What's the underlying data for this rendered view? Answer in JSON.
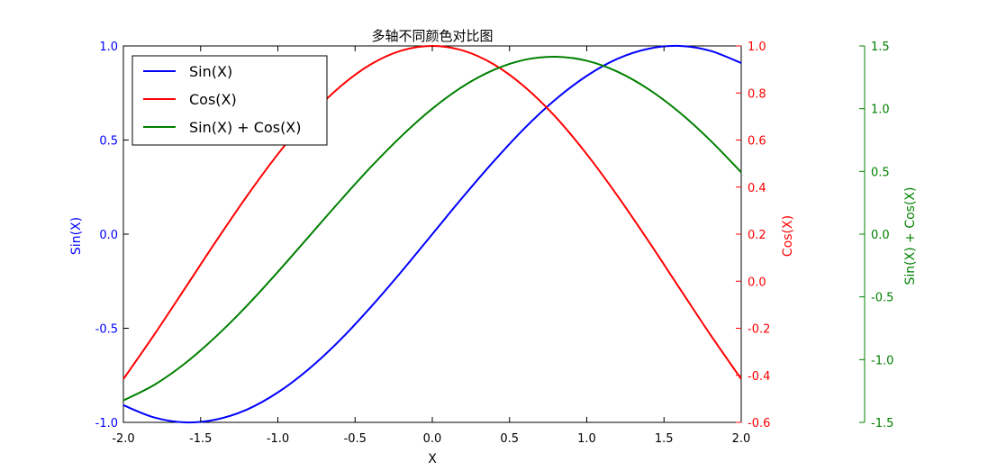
{
  "chart_data": {
    "type": "line",
    "title": "多轴不同颜色对比图",
    "xlabel": "X",
    "xlim": [
      -2.0,
      2.0
    ],
    "x_ticks": [
      "-2.0",
      "-1.5",
      "-1.0",
      "-0.5",
      "0.0",
      "0.5",
      "1.0",
      "1.5",
      "2.0"
    ],
    "axes": [
      {
        "id": "left",
        "label": "Sin(X)",
        "color": "#0000ff",
        "ylim": [
          -1.0,
          1.0
        ],
        "ticks": [
          "-1.0",
          "-0.5",
          "0.0",
          "0.5",
          "1.0"
        ]
      },
      {
        "id": "right1",
        "label": "Cos(X)",
        "color": "#ff0000",
        "ylim": [
          -0.6,
          1.0
        ],
        "ticks": [
          "-0.6",
          "-0.4",
          "-0.2",
          "0.0",
          "0.2",
          "0.4",
          "0.6",
          "0.8",
          "1.0"
        ]
      },
      {
        "id": "right2",
        "label": "Sin(X) + Cos(X)",
        "color": "#008000",
        "ylim": [
          -1.5,
          1.5
        ],
        "ticks": [
          "-1.5",
          "-1.0",
          "-0.5",
          "0.0",
          "0.5",
          "1.0",
          "1.5"
        ]
      }
    ],
    "x": [
      -2.0,
      -1.8,
      -1.6,
      -1.4,
      -1.2,
      -1.0,
      -0.8,
      -0.6,
      -0.4,
      -0.2,
      0.0,
      0.2,
      0.4,
      0.6,
      0.8,
      1.0,
      1.2,
      1.4,
      1.6,
      1.8,
      2.0
    ],
    "series": [
      {
        "name": "Sin(X)",
        "axis": "left",
        "color": "#0000ff",
        "values": [
          -0.909,
          -0.974,
          -1.0,
          -0.985,
          -0.932,
          -0.841,
          -0.717,
          -0.565,
          -0.389,
          -0.199,
          0.0,
          0.199,
          0.389,
          0.565,
          0.717,
          0.841,
          0.932,
          0.985,
          1.0,
          0.974,
          0.909
        ]
      },
      {
        "name": "Cos(X)",
        "axis": "right1",
        "color": "#ff0000",
        "values": [
          -0.416,
          -0.227,
          -0.029,
          0.17,
          0.362,
          0.54,
          0.697,
          0.825,
          0.921,
          0.98,
          1.0,
          0.98,
          0.921,
          0.825,
          0.697,
          0.54,
          0.362,
          0.17,
          -0.029,
          -0.227,
          -0.416
        ]
      },
      {
        "name": "Sin(X) + Cos(X)",
        "axis": "right2",
        "color": "#008000",
        "values": [
          -1.325,
          -1.201,
          -1.029,
          -0.815,
          -0.57,
          -0.301,
          -0.02,
          0.261,
          0.532,
          0.781,
          1.0,
          1.179,
          1.31,
          1.39,
          1.414,
          1.382,
          1.294,
          1.155,
          0.971,
          0.747,
          0.493
        ]
      }
    ],
    "legend": {
      "position": "top-left",
      "entries": [
        "Sin(X)",
        "Cos(X)",
        "Sin(X) + Cos(X)"
      ]
    },
    "grid": false
  }
}
